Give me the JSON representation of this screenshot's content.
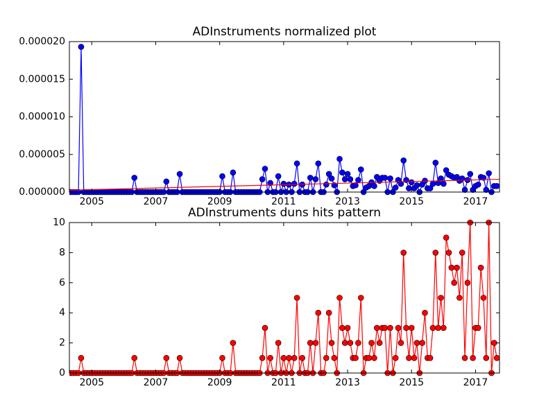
{
  "chart_data": [
    {
      "type": "line",
      "title": "ADInstruments normalized plot",
      "xlim": [
        2004.3,
        2017.75
      ],
      "xticks": [
        2005,
        2007,
        2009,
        2011,
        2013,
        2015,
        2017
      ],
      "ylim": [
        0,
        2e-05
      ],
      "yticks": [
        {
          "value": 0,
          "label": "0.000000"
        },
        {
          "value": 5e-06,
          "label": "0.000005"
        },
        {
          "value": 1e-05,
          "label": "0.000010"
        },
        {
          "value": 1.5e-05,
          "label": "0.000015"
        },
        {
          "value": 2e-05,
          "label": "0.000020"
        }
      ],
      "series": [
        {
          "color": "#0000ff",
          "marker": "o",
          "x": [
            2004.333,
            2004.417,
            2004.5,
            2004.583,
            2004.667,
            2004.75,
            2004.833,
            2004.917,
            2005,
            2005.083,
            2005.167,
            2005.25,
            2005.333,
            2005.417,
            2005.5,
            2005.583,
            2005.667,
            2005.75,
            2005.833,
            2005.917,
            2006,
            2006.083,
            2006.167,
            2006.25,
            2006.333,
            2006.417,
            2006.5,
            2006.583,
            2006.667,
            2006.75,
            2006.833,
            2006.917,
            2007,
            2007.083,
            2007.167,
            2007.25,
            2007.333,
            2007.417,
            2007.5,
            2007.583,
            2007.667,
            2007.75,
            2007.833,
            2007.917,
            2008,
            2008.083,
            2008.167,
            2008.25,
            2008.333,
            2008.417,
            2008.5,
            2008.583,
            2008.667,
            2008.75,
            2008.833,
            2008.917,
            2009,
            2009.083,
            2009.167,
            2009.25,
            2009.333,
            2009.417,
            2009.5,
            2009.583,
            2009.667,
            2009.75,
            2009.833,
            2009.917,
            2010,
            2010.083,
            2010.167,
            2010.25,
            2010.333,
            2010.417,
            2010.5,
            2010.583,
            2010.667,
            2010.75,
            2010.833,
            2010.917,
            2011,
            2011.083,
            2011.167,
            2011.25,
            2011.333,
            2011.417,
            2011.5,
            2011.583,
            2011.667,
            2011.75,
            2011.833,
            2011.917,
            2012,
            2012.083,
            2012.167,
            2012.25,
            2012.333,
            2012.417,
            2012.5,
            2012.583,
            2012.667,
            2012.75,
            2012.833,
            2012.917,
            2013,
            2013.083,
            2013.167,
            2013.25,
            2013.333,
            2013.417,
            2013.5,
            2013.583,
            2013.667,
            2013.75,
            2013.833,
            2013.917,
            2014,
            2014.083,
            2014.167,
            2014.25,
            2014.333,
            2014.417,
            2014.5,
            2014.583,
            2014.667,
            2014.75,
            2014.833,
            2014.917,
            2015,
            2015.083,
            2015.167,
            2015.25,
            2015.333,
            2015.417,
            2015.5,
            2015.583,
            2015.667,
            2015.75,
            2015.833,
            2015.917,
            2016,
            2016.083,
            2016.167,
            2016.25,
            2016.333,
            2016.417,
            2016.5,
            2016.583,
            2016.667,
            2016.75,
            2016.833,
            2016.917,
            2017,
            2017.083,
            2017.167,
            2017.25,
            2017.333,
            2017.417,
            2017.5,
            2017.583,
            2017.667
          ],
          "values": [
            0,
            0,
            0,
            0,
            1.93e-05,
            0,
            0,
            0,
            0,
            0,
            0,
            0,
            0,
            0,
            0,
            0,
            0,
            0,
            0,
            0,
            0,
            0,
            0,
            0,
            1.9e-06,
            0,
            0,
            0,
            0,
            0,
            0,
            0,
            0,
            0,
            0,
            0,
            1.4e-06,
            0,
            0,
            0,
            0,
            2.4e-06,
            0,
            0,
            0,
            0,
            0,
            0,
            0,
            0,
            0,
            0,
            0,
            0,
            0,
            0,
            0,
            2.1e-06,
            0,
            0,
            0,
            2.6e-06,
            0,
            0,
            0,
            0,
            0,
            0,
            0,
            0,
            0,
            0,
            1.7e-06,
            3.1e-06,
            0,
            1.2e-06,
            0,
            0,
            2.1e-06,
            0,
            1.1e-06,
            0,
            1e-06,
            0,
            1.1e-06,
            3.8e-06,
            0,
            1e-06,
            0,
            0,
            1.9e-06,
            0,
            1.7e-06,
            3.8e-06,
            0,
            0,
            1e-06,
            2.4e-06,
            1.8e-06,
            9e-07,
            0,
            4.4e-06,
            2.6e-06,
            1.7e-06,
            2.4e-06,
            1.7e-06,
            8e-07,
            9e-07,
            1.6e-06,
            3e-06,
            0,
            6e-07,
            8e-07,
            1.3e-06,
            8e-07,
            2e-06,
            1.5e-06,
            1.9e-06,
            1.9e-06,
            0,
            1.8e-06,
            0,
            6e-07,
            1.6e-06,
            1.1e-06,
            4.2e-06,
            1.6e-06,
            5e-07,
            1.3e-06,
            5e-07,
            9e-07,
            0,
            1e-06,
            1.5e-06,
            5e-07,
            5e-07,
            1.1e-06,
            3.9e-06,
            1.2e-06,
            1.8e-06,
            1.1e-06,
            2.9e-06,
            2.3e-06,
            2.1e-06,
            1.9e-06,
            2e-06,
            1.5e-06,
            1.8e-06,
            3e-07,
            1.6e-06,
            2.4e-06,
            3e-07,
            8e-07,
            1e-06,
            2e-06,
            1.9e-06,
            3e-07,
            2.5e-06,
            0,
            8e-07,
            8e-07
          ]
        },
        {
          "color": "#ff0000",
          "x": [
            2004.3,
            2017.75
          ],
          "values": [
            2.5e-07,
            1.7e-06
          ]
        }
      ]
    },
    {
      "type": "line",
      "title": "ADInstruments duns hits pattern",
      "xlim": [
        2004.3,
        2017.75
      ],
      "xticks": [
        2005,
        2007,
        2009,
        2011,
        2013,
        2015,
        2017
      ],
      "ylim": [
        0,
        10
      ],
      "yticks": [
        0,
        2,
        4,
        6,
        8,
        10
      ],
      "series": [
        {
          "color": "#ff0000",
          "marker": "o",
          "x": [
            2004.333,
            2004.417,
            2004.5,
            2004.583,
            2004.667,
            2004.75,
            2004.833,
            2004.917,
            2005,
            2005.083,
            2005.167,
            2005.25,
            2005.333,
            2005.417,
            2005.5,
            2005.583,
            2005.667,
            2005.75,
            2005.833,
            2005.917,
            2006,
            2006.083,
            2006.167,
            2006.25,
            2006.333,
            2006.417,
            2006.5,
            2006.583,
            2006.667,
            2006.75,
            2006.833,
            2006.917,
            2007,
            2007.083,
            2007.167,
            2007.25,
            2007.333,
            2007.417,
            2007.5,
            2007.583,
            2007.667,
            2007.75,
            2007.833,
            2007.917,
            2008,
            2008.083,
            2008.167,
            2008.25,
            2008.333,
            2008.417,
            2008.5,
            2008.583,
            2008.667,
            2008.75,
            2008.833,
            2008.917,
            2009,
            2009.083,
            2009.167,
            2009.25,
            2009.333,
            2009.417,
            2009.5,
            2009.583,
            2009.667,
            2009.75,
            2009.833,
            2009.917,
            2010,
            2010.083,
            2010.167,
            2010.25,
            2010.333,
            2010.417,
            2010.5,
            2010.583,
            2010.667,
            2010.75,
            2010.833,
            2010.917,
            2011,
            2011.083,
            2011.167,
            2011.25,
            2011.333,
            2011.417,
            2011.5,
            2011.583,
            2011.667,
            2011.75,
            2011.833,
            2011.917,
            2012,
            2012.083,
            2012.167,
            2012.25,
            2012.333,
            2012.417,
            2012.5,
            2012.583,
            2012.667,
            2012.75,
            2012.833,
            2012.917,
            2013,
            2013.083,
            2013.167,
            2013.25,
            2013.333,
            2013.417,
            2013.5,
            2013.583,
            2013.667,
            2013.75,
            2013.833,
            2013.917,
            2014,
            2014.083,
            2014.167,
            2014.25,
            2014.333,
            2014.417,
            2014.5,
            2014.583,
            2014.667,
            2014.75,
            2014.833,
            2014.917,
            2015,
            2015.083,
            2015.167,
            2015.25,
            2015.333,
            2015.417,
            2015.5,
            2015.583,
            2015.667,
            2015.75,
            2015.833,
            2015.917,
            2016,
            2016.083,
            2016.167,
            2016.25,
            2016.333,
            2016.417,
            2016.5,
            2016.583,
            2016.667,
            2016.75,
            2016.833,
            2016.917,
            2017,
            2017.083,
            2017.167,
            2017.25,
            2017.333,
            2017.417,
            2017.5,
            2017.583,
            2017.667
          ],
          "values": [
            0,
            0,
            0,
            0,
            1,
            0,
            0,
            0,
            0,
            0,
            0,
            0,
            0,
            0,
            0,
            0,
            0,
            0,
            0,
            0,
            0,
            0,
            0,
            0,
            1,
            0,
            0,
            0,
            0,
            0,
            0,
            0,
            0,
            0,
            0,
            0,
            1,
            0,
            0,
            0,
            0,
            1,
            0,
            0,
            0,
            0,
            0,
            0,
            0,
            0,
            0,
            0,
            0,
            0,
            0,
            0,
            0,
            1,
            0,
            0,
            0,
            2,
            0,
            0,
            0,
            0,
            0,
            0,
            0,
            0,
            0,
            0,
            1,
            3,
            0,
            1,
            0,
            0,
            2,
            0,
            1,
            0,
            1,
            0,
            1,
            5,
            0,
            1,
            0,
            0,
            2,
            0,
            2,
            4,
            0,
            0,
            1,
            4,
            2,
            1,
            0,
            5,
            3,
            2,
            3,
            2,
            1,
            1,
            2,
            5,
            0,
            1,
            1,
            2,
            1,
            3,
            2,
            3,
            3,
            0,
            3,
            0,
            1,
            3,
            2,
            8,
            3,
            1,
            3,
            1,
            2,
            0,
            2,
            4,
            1,
            1,
            3,
            8,
            3,
            5,
            3,
            9,
            8,
            7,
            6,
            7,
            5,
            8,
            1,
            6,
            10,
            1,
            3,
            3,
            7,
            5,
            1,
            10,
            0,
            2,
            1
          ]
        }
      ]
    }
  ]
}
